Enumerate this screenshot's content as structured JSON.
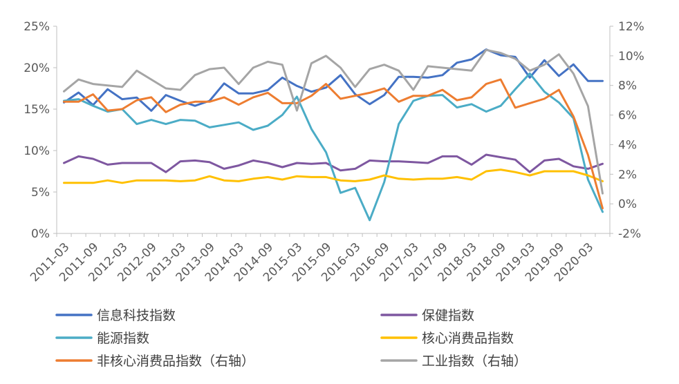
{
  "chart_data": {
    "type": "line",
    "title": "",
    "xlabel": "",
    "ylabel": "",
    "x_tick_labels": [
      "2011-03",
      "2011-09",
      "2012-03",
      "2012-09",
      "2013-03",
      "2013-09",
      "2014-03",
      "2014-09",
      "2015-03",
      "2015-09",
      "2016-03",
      "2016-09",
      "2017-03",
      "2017-09",
      "2018-03",
      "2018-09",
      "2019-03",
      "2019-09",
      "2020-03"
    ],
    "x": [
      "2011-03",
      "2011-06",
      "2011-09",
      "2011-12",
      "2012-03",
      "2012-06",
      "2012-09",
      "2012-12",
      "2013-03",
      "2013-06",
      "2013-09",
      "2013-12",
      "2014-03",
      "2014-06",
      "2014-09",
      "2014-12",
      "2015-03",
      "2015-06",
      "2015-09",
      "2015-12",
      "2016-03",
      "2016-06",
      "2016-09",
      "2016-12",
      "2017-03",
      "2017-06",
      "2017-09",
      "2017-12",
      "2018-03",
      "2018-06",
      "2018-09",
      "2018-12",
      "2019-03",
      "2019-06",
      "2019-09",
      "2019-12",
      "2020-03",
      "2020-06"
    ],
    "y_left": {
      "min": 0,
      "max": 25,
      "step": 5,
      "tick_labels": [
        "0%",
        "5%",
        "10%",
        "15%",
        "20%",
        "25%"
      ]
    },
    "y_right": {
      "min": -2,
      "max": 12,
      "step": 2,
      "tick_labels": [
        "-2%",
        "0%",
        "2%",
        "4%",
        "6%",
        "8%",
        "10%",
        "12%"
      ]
    },
    "legend_position": "bottom",
    "grid": false,
    "series": [
      {
        "name": "信息科技指数",
        "axis": "left",
        "color": "#4472C4",
        "values": [
          15.8,
          17.0,
          15.5,
          17.4,
          16.2,
          16.4,
          14.8,
          16.7,
          16.0,
          15.4,
          16.0,
          18.1,
          16.9,
          16.9,
          17.3,
          18.8,
          17.8,
          17.1,
          17.6,
          19.1,
          16.8,
          15.6,
          16.7,
          18.9,
          18.9,
          18.8,
          19.1,
          20.6,
          21.0,
          22.2,
          21.5,
          21.3,
          18.8,
          20.9,
          19.0,
          20.4,
          18.4,
          18.4
        ]
      },
      {
        "name": "保健指数",
        "axis": "left",
        "color": "#7E57A0",
        "values": [
          8.5,
          9.3,
          9.0,
          8.3,
          8.5,
          8.5,
          8.5,
          7.4,
          8.7,
          8.8,
          8.6,
          7.8,
          8.2,
          8.8,
          8.5,
          8.0,
          8.5,
          8.4,
          8.5,
          7.6,
          7.8,
          8.8,
          8.7,
          8.7,
          8.6,
          8.5,
          9.3,
          9.3,
          8.3,
          9.5,
          9.2,
          8.9,
          7.4,
          8.8,
          9.0,
          8.1,
          7.8,
          8.4
        ]
      },
      {
        "name": "能源指数",
        "axis": "left",
        "color": "#4BACC6",
        "values": [
          16.0,
          16.2,
          15.4,
          14.7,
          15.0,
          13.2,
          13.7,
          13.2,
          13.7,
          13.6,
          12.8,
          13.1,
          13.4,
          12.5,
          13.0,
          14.3,
          16.5,
          12.6,
          9.8,
          4.9,
          5.5,
          1.6,
          6.2,
          13.2,
          16.0,
          16.6,
          16.7,
          15.2,
          15.6,
          14.7,
          15.4,
          17.4,
          19.3,
          17.1,
          15.8,
          13.9,
          6.5,
          2.6
        ]
      },
      {
        "name": "核心消费品指数",
        "axis": "left",
        "color": "#FFC000",
        "values": [
          6.1,
          6.1,
          6.1,
          6.4,
          6.1,
          6.4,
          6.4,
          6.4,
          6.3,
          6.4,
          6.9,
          6.4,
          6.3,
          6.6,
          6.8,
          6.5,
          6.9,
          6.8,
          6.8,
          6.4,
          6.3,
          6.5,
          7.0,
          6.6,
          6.5,
          6.6,
          6.6,
          6.8,
          6.5,
          7.5,
          7.7,
          7.4,
          7.0,
          7.5,
          7.5,
          7.5,
          7.0,
          6.3
        ]
      },
      {
        "name": "非核心消费品指数（右轴）",
        "axis": "right",
        "color": "#ED7D31",
        "values": [
          6.9,
          6.9,
          7.4,
          6.3,
          6.4,
          7.0,
          7.2,
          6.2,
          6.7,
          6.9,
          6.9,
          7.2,
          6.7,
          7.2,
          7.5,
          6.8,
          6.8,
          7.3,
          8.1,
          7.1,
          7.3,
          7.5,
          7.8,
          6.9,
          7.3,
          7.3,
          7.7,
          7.0,
          7.2,
          8.1,
          8.4,
          6.5,
          6.8,
          7.1,
          7.7,
          5.9,
          3.3,
          -0.3
        ]
      },
      {
        "name": "工业指数（右轴）",
        "axis": "right",
        "color": "#A5A5A5",
        "values": [
          7.6,
          8.4,
          8.1,
          8.0,
          7.9,
          9.0,
          8.4,
          7.8,
          7.7,
          8.7,
          9.1,
          9.2,
          8.1,
          9.2,
          9.6,
          9.4,
          6.3,
          9.5,
          10.0,
          9.2,
          7.9,
          9.1,
          9.4,
          9.0,
          7.7,
          9.3,
          9.2,
          9.1,
          9.0,
          10.4,
          10.2,
          9.8,
          9.0,
          9.4,
          10.1,
          8.8,
          6.6,
          0.7
        ]
      }
    ]
  }
}
